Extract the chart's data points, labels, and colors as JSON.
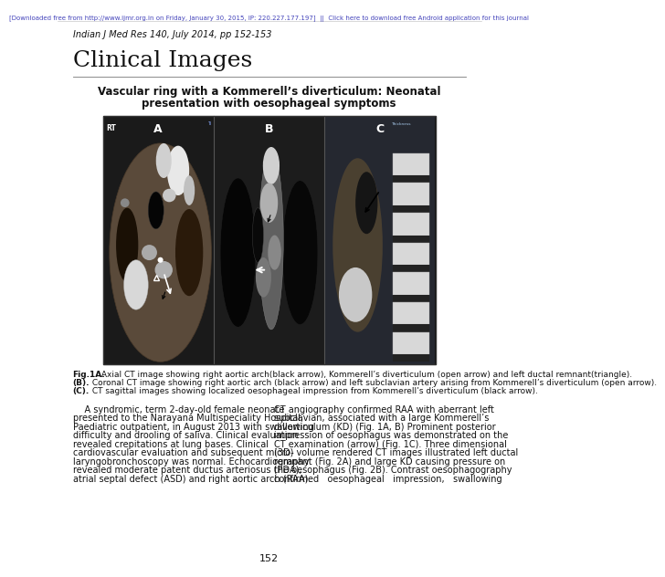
{
  "header_line": "[Downloaded free from http://www.ijmr.org.in on Friday, January 30, 2015, IP: 220.227.177.197]  ||  Click here to download free Android application for this journal",
  "journal_info": "Indian J Med Res 140, July 2014, pp 152-153",
  "section_title": "Clinical Images",
  "article_title_line1": "Vascular ring with a Kommerell’s diverticulum: Neonatal",
  "article_title_line2": "presentation with oesophageal symptoms",
  "fig_labels": [
    "A",
    "B",
    "C"
  ],
  "figure_caption_bold": "Fig.1A.",
  "figure_caption_line1": " Axial CT image showing right aortic arch(black arrow), Kommerell’s diverticulum (open arrow) and left ductal remnant(triangle).",
  "figure_caption_line2": "(B).",
  "figure_caption_line2b": " Coronal CT image showing right aortic arch (black arrow) and left subclavian artery arising from Kommerell’s diverticulum (open arrow).",
  "figure_caption_line3": "(C).",
  "figure_caption_line3b": " CT sagittal images showing localized oesophageal impression from Kommerell’s diverticulum (black arrow).",
  "body_col1_lines": [
    "    A syndromic, term 2-day-old female neonate",
    "presented to the Narayana Multispeciality Hospital,",
    "Paediatric outpatient, in August 2013 with swallowing",
    "difficulty and drooling of saliva. Clinical evaluation",
    "revealed crepitations at lung bases. Clinical",
    "cardiovascular evaluation and subsequent micro-",
    "laryngobronchoscopy was normal. Echocardiography",
    "revealed moderate patent ductus arteriosus (PDA),",
    "atrial septal defect (ASD) and right aortic arch (RAA)."
  ],
  "body_col2_lines": [
    "CT angiography confirmed RAA with aberrant left",
    "subclavian, associated with a large Kommerell’s",
    "diverticulum (KD) (Fig. 1A, B) Prominent posterior",
    "impression of oesophagus was demonstrated on the",
    "CT examination (arrow) (Fig. 1C). Three dimensional",
    "(3D) volume rendered CT images illustrated left ductal",
    "remnant (Fig. 2A) and large KD causing pressure on",
    "the oesophagus (Fig. 2B). Contrast oesophagography",
    "confirmed   oesophageal   impression,   swallowing"
  ],
  "page_number": "152",
  "bg_color": "#ffffff",
  "header_color": "#4444bb",
  "text_color": "#111111"
}
